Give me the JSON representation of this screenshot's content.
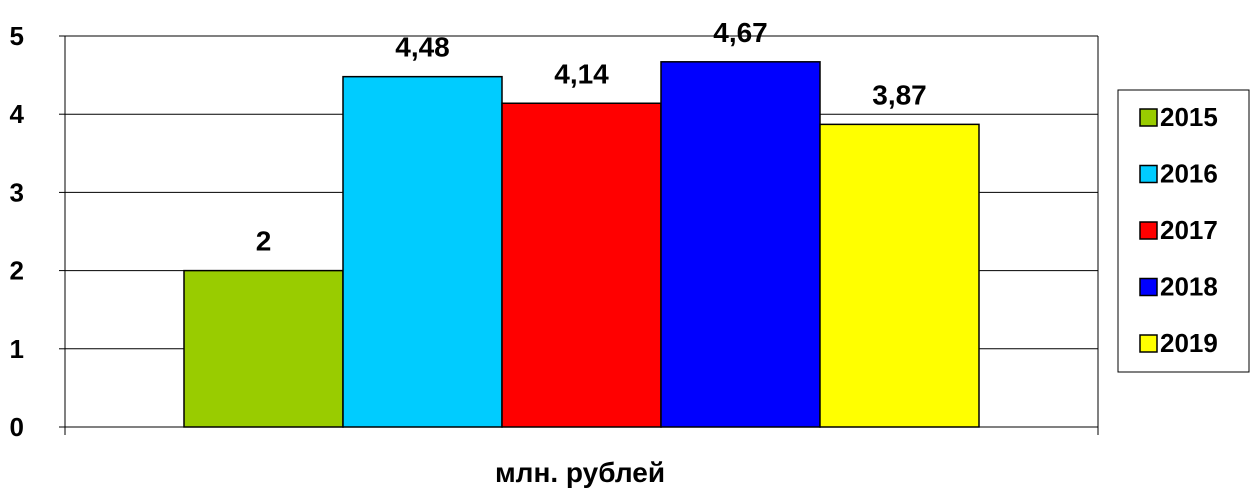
{
  "chart_data": {
    "type": "bar",
    "title": "",
    "xlabel": "млн. рублей",
    "ylabel": "",
    "ylim": [
      0,
      5
    ],
    "yticks": [
      0,
      1,
      2,
      3,
      4,
      5
    ],
    "grid": true,
    "legend_position": "right",
    "series": [
      {
        "name": "2015",
        "value": 2,
        "label": "2",
        "color": "#99CC00"
      },
      {
        "name": "2016",
        "value": 4.48,
        "label": "4,48",
        "color": "#00CCFF"
      },
      {
        "name": "2017",
        "value": 4.14,
        "label": "4,14",
        "color": "#FF0000"
      },
      {
        "name": "2018",
        "value": 4.67,
        "label": "4,67",
        "color": "#0000FF"
      },
      {
        "name": "2019",
        "value": 3.87,
        "label": "3,87",
        "color": "#FFFF00"
      }
    ]
  }
}
